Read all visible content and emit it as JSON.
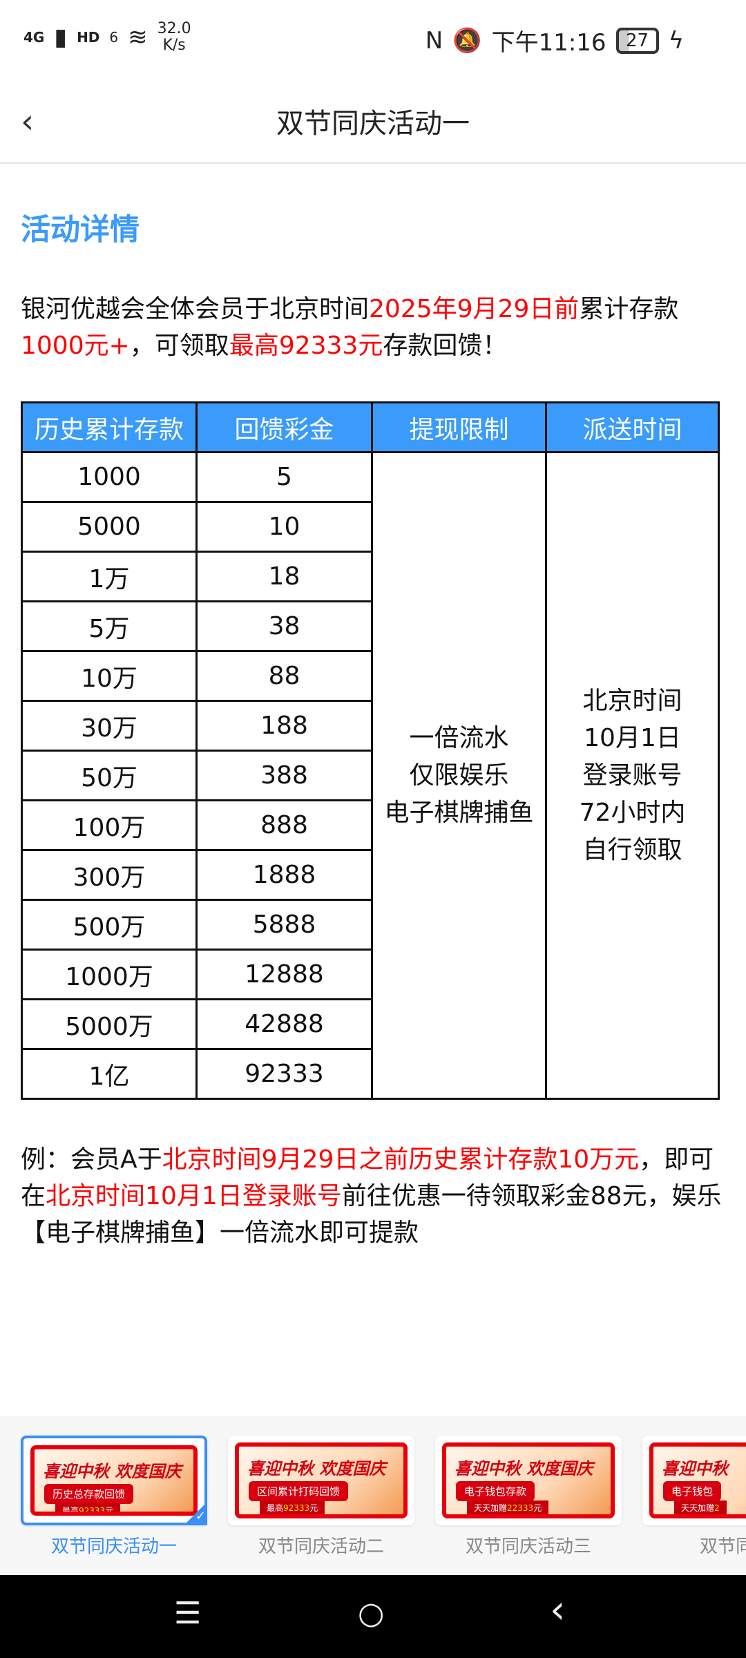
{
  "status": {
    "network": "4G",
    "hd": "HD",
    "wifi": "6",
    "speed_value": "32.0",
    "speed_unit": "K/s",
    "time": "下午11:16",
    "battery": "27"
  },
  "header": {
    "title": "双节同庆活动一"
  },
  "section_title": "活动详情",
  "intro": {
    "p1": "银河优越会全体会员于北京时间",
    "r1": "2025年9月29日前",
    "p2": "累计存款",
    "r2": "1000元+",
    "p3": "，可领取",
    "r3": "最高92333元",
    "p4": "存款回馈！"
  },
  "table": {
    "headers": [
      "历史累计存款",
      "回馈彩金",
      "提现限制",
      "派送时间"
    ],
    "rows": [
      [
        "1000",
        "5"
      ],
      [
        "5000",
        "10"
      ],
      [
        "1万",
        "18"
      ],
      [
        "5万",
        "38"
      ],
      [
        "10万",
        "88"
      ],
      [
        "30万",
        "188"
      ],
      [
        "50万",
        "388"
      ],
      [
        "100万",
        "888"
      ],
      [
        "300万",
        "1888"
      ],
      [
        "500万",
        "5888"
      ],
      [
        "1000万",
        "12888"
      ],
      [
        "5000万",
        "42888"
      ],
      [
        "1亿",
        "92333"
      ]
    ],
    "limit": [
      "一倍流水",
      "仅限娱乐",
      "电子棋牌捕鱼"
    ],
    "delivery": [
      "北京时间",
      "10月1日",
      "登录账号",
      "72小时内",
      "自行领取"
    ]
  },
  "example": {
    "p1": "例：会员A于",
    "r1": "北京时间9月29日之前历史累计存款10万元",
    "p2": "，即可在",
    "r2": "北京时间10月1日登录账号",
    "p3": "前往优惠一待领取彩金88元，娱乐【电子棋牌捕鱼】一倍流水即可提款"
  },
  "tabs": [
    {
      "label": "双节同庆活动一",
      "banner_title": "喜迎中秋 欢度国庆",
      "banner_pill": "历史总存款回馈",
      "banner_sub_a": "最高",
      "banner_sub_b": "92333",
      "banner_sub_c": "元"
    },
    {
      "label": "双节同庆活动二",
      "banner_title": "喜迎中秋 欢度国庆",
      "banner_pill": "区间累计打码回馈",
      "banner_sub_a": "最高",
      "banner_sub_b": "92333",
      "banner_sub_c": "元"
    },
    {
      "label": "双节同庆活动三",
      "banner_title": "喜迎中秋 欢度国庆",
      "banner_pill": "电子钱包存款",
      "banner_sub_a": "天天加赠",
      "banner_sub_b": "22333",
      "banner_sub_c": "元"
    },
    {
      "label": "双节同庆",
      "banner_title": "喜迎中秋",
      "banner_pill": "电子钱包",
      "banner_sub_a": "天天加赠",
      "banner_sub_b": "2",
      "banner_sub_c": ""
    }
  ],
  "nav": {
    "menu": "☰",
    "home": "○",
    "back": "‹"
  },
  "colors": {
    "accent": "#3a9bfa",
    "highlight": "#ff0000"
  }
}
